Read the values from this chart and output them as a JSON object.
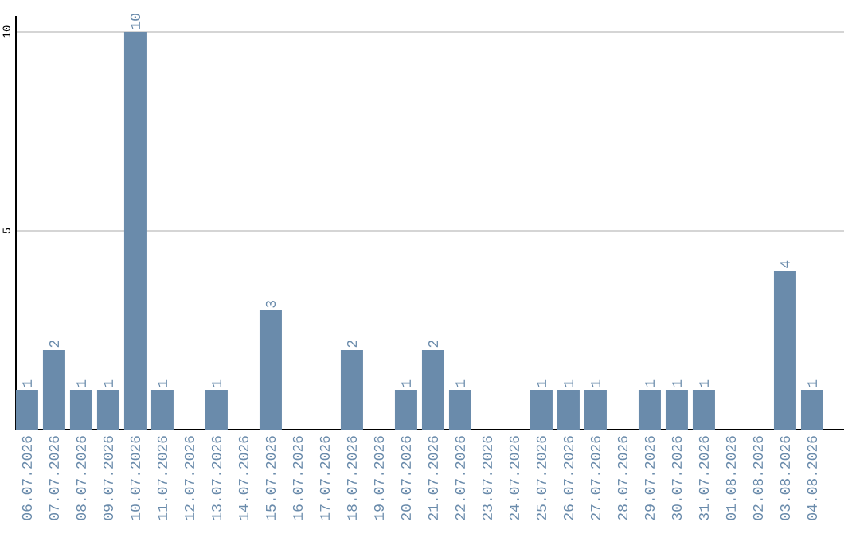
{
  "chart_data": {
    "type": "bar",
    "categories": [
      "06.07.2026",
      "07.07.2026",
      "08.07.2026",
      "09.07.2026",
      "10.07.2026",
      "11.07.2026",
      "12.07.2026",
      "13.07.2026",
      "14.07.2026",
      "15.07.2026",
      "16.07.2026",
      "17.07.2026",
      "18.07.2026",
      "19.07.2026",
      "20.07.2026",
      "21.07.2026",
      "22.07.2026",
      "23.07.2026",
      "24.07.2026",
      "25.07.2026",
      "26.07.2026",
      "27.07.2026",
      "28.07.2026",
      "29.07.2026",
      "30.07.2026",
      "31.07.2026",
      "01.08.2026",
      "02.08.2026",
      "03.08.2026",
      "04.08.2026"
    ],
    "values": [
      1,
      2,
      1,
      1,
      10,
      1,
      0,
      1,
      0,
      3,
      0,
      0,
      2,
      0,
      1,
      2,
      1,
      0,
      0,
      1,
      1,
      1,
      0,
      1,
      1,
      1,
      0,
      0,
      4,
      1
    ],
    "value_labels": [
      "1",
      "2",
      "1",
      "1",
      "10",
      "1",
      null,
      "1",
      null,
      "3",
      null,
      null,
      "2",
      null,
      "1",
      "2",
      "1",
      null,
      null,
      "1",
      "1",
      "1",
      null,
      "1",
      "1",
      "1",
      null,
      null,
      "4",
      "1"
    ],
    "color": "#6a8bab",
    "ylim": [
      0,
      10.4
    ],
    "yticks": [
      5,
      10
    ],
    "grid": "y"
  }
}
